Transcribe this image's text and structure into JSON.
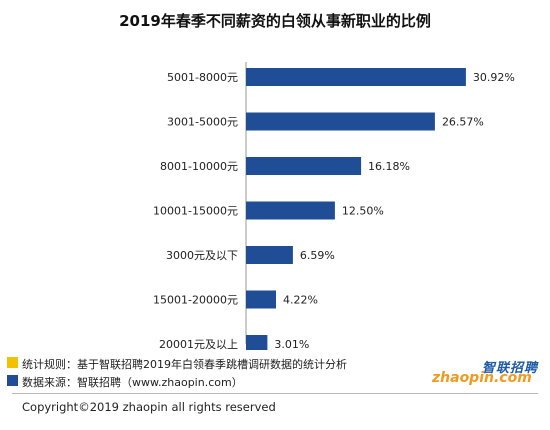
{
  "chart_data": {
    "type": "bar",
    "orientation": "horizontal",
    "title": "2019年春季不同薪资的白领从事新职业的比例",
    "categories": [
      "5001-8000元",
      "3001-5000元",
      "8001-10000元",
      "10001-15000元",
      "3000元及以下",
      "15001-20000元",
      "20001元及以上"
    ],
    "values": [
      30.92,
      26.57,
      16.18,
      12.5,
      6.59,
      4.22,
      3.01
    ],
    "value_labels": [
      "30.92%",
      "26.57%",
      "16.18%",
      "12.50%",
      "6.59%",
      "4.22%",
      "3.01%"
    ],
    "unit": "%",
    "xlim": [
      0,
      31.5
    ],
    "grid": false,
    "bar_color": "#1f4e96"
  },
  "notes": [
    {
      "text": "统计规则：基于智联招聘2019年白领春季跳槽调研数据的统计分析",
      "color": "#f2c200"
    },
    {
      "text": "数据来源：智联招聘（www.zhaopin.com）",
      "color": "#1f4e96"
    }
  ],
  "logo": {
    "cn": "智联招聘",
    "en": "zhaopin.com"
  },
  "copyright": "Copyright©2019 zhaopin all rights reserved"
}
